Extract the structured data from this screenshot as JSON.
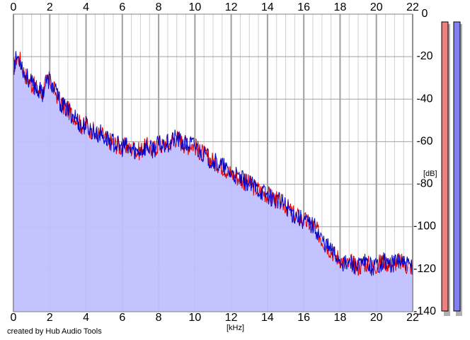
{
  "credit": "created by Hub Audio Tools",
  "chart_data": {
    "type": "area",
    "xlabel": "[kHz]",
    "ylabel": "[dB]",
    "xlim": [
      0,
      22
    ],
    "ylim": [
      -140,
      0
    ],
    "x_ticks": [
      0,
      2,
      4,
      6,
      8,
      10,
      12,
      14,
      16,
      18,
      20,
      22
    ],
    "y_ticks": [
      0,
      -20,
      -40,
      -60,
      -80,
      -100,
      -120,
      -140
    ],
    "grid": true,
    "colors": {
      "fill": "#c0c0ff",
      "left_channel": "#dd0000",
      "right_channel": "#0000cc",
      "grid_major": "#a0a0a0",
      "grid_minor": "#d0d0d0",
      "meter_left": "#f08080",
      "meter_right": "#8080f0"
    },
    "series": [
      {
        "x": [
          0,
          0.2,
          0.4,
          0.6,
          0.8,
          1,
          1.2,
          1.4,
          1.6,
          1.8,
          2,
          2.2,
          2.4,
          2.6,
          2.8,
          3,
          3.2,
          3.4,
          3.6,
          3.8,
          4,
          4.2,
          4.4,
          4.6,
          4.8,
          5,
          5.2,
          5.4,
          5.6,
          5.8,
          6,
          6.2,
          6.4,
          6.6,
          6.8,
          7,
          7.2,
          7.4,
          7.6,
          7.8,
          8,
          8.2,
          8.4,
          8.6,
          8.8,
          9,
          9.2,
          9.4,
          9.6,
          9.8,
          10,
          10.2,
          10.4,
          10.6,
          10.8,
          11,
          11.2,
          11.4,
          11.6,
          11.8,
          12,
          12.2,
          12.4,
          12.6,
          12.8,
          13,
          13.2,
          13.4,
          13.6,
          13.8,
          14,
          14.2,
          14.4,
          14.6,
          14.8,
          15,
          15.2,
          15.4,
          15.6,
          15.8,
          16,
          16.2,
          16.4,
          16.6,
          16.8,
          17,
          17.2,
          17.4,
          17.6,
          17.8,
          18,
          18.2,
          18.4,
          18.6,
          18.8,
          19,
          19.2,
          19.4,
          19.6,
          19.8,
          20,
          20.2,
          20.4,
          20.6,
          20.8,
          21,
          21.2,
          21.4,
          21.6,
          21.8,
          22
        ],
        "values": [
          -25,
          -20,
          -22,
          -28,
          -30,
          -33,
          -34,
          -36,
          -37,
          -32,
          -31,
          -35,
          -38,
          -42,
          -44,
          -45,
          -47,
          -48,
          -51,
          -53,
          -52,
          -54,
          -55,
          -57,
          -56,
          -58,
          -59,
          -60,
          -61,
          -62,
          -63,
          -62,
          -64,
          -63,
          -65,
          -64,
          -63,
          -62,
          -64,
          -63,
          -61,
          -62,
          -60,
          -61,
          -59,
          -58,
          -60,
          -61,
          -62,
          -61,
          -62,
          -64,
          -65,
          -67,
          -68,
          -69,
          -70,
          -71,
          -72,
          -74,
          -75,
          -76,
          -77,
          -78,
          -79,
          -80,
          -81,
          -82,
          -83,
          -84,
          -85,
          -86,
          -87,
          -88,
          -89,
          -90,
          -92,
          -94,
          -95,
          -96,
          -97,
          -98,
          -99,
          -100,
          -103,
          -106,
          -108,
          -110,
          -112,
          -114,
          -115,
          -117,
          -118,
          -117,
          -118,
          -119,
          -118,
          -117,
          -118,
          -119,
          -118,
          -117,
          -116,
          -117,
          -118,
          -117,
          -116,
          -117,
          -118,
          -119,
          -118
        ]
      }
    ],
    "meters": [
      {
        "channel": "left",
        "level": 1.0
      },
      {
        "channel": "right",
        "level": 1.0
      }
    ]
  }
}
